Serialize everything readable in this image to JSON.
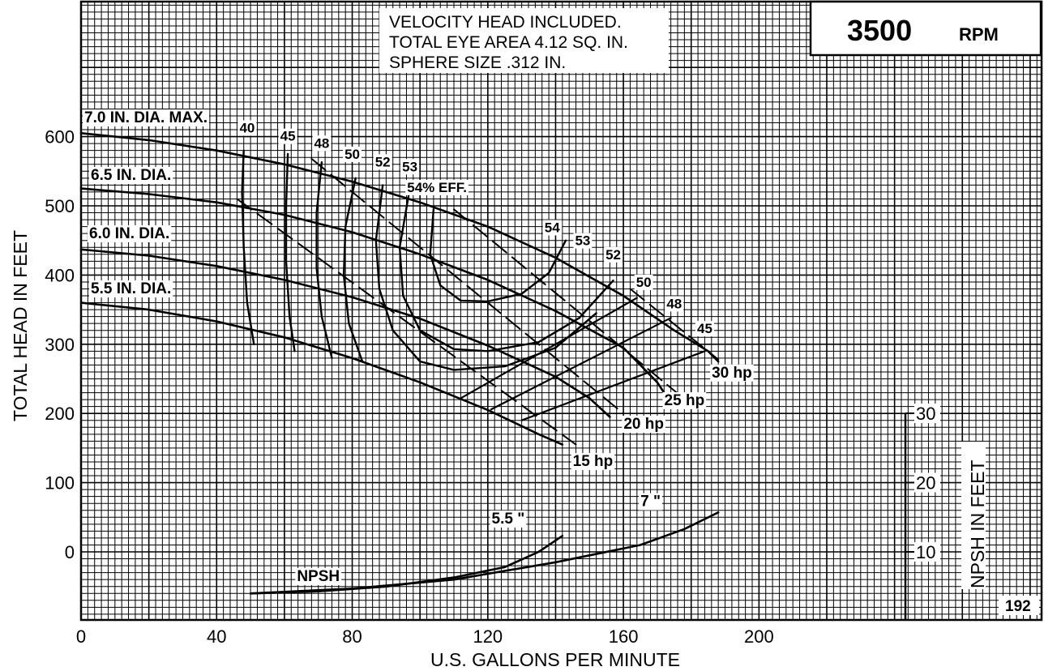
{
  "chart_data": {
    "type": "line",
    "title": "",
    "xlabel": "U.S. GALLONS PER MINUTE",
    "ylabel": "TOTAL HEAD IN FEET",
    "y2label": "NPSH IN FEET",
    "xlim": [
      0,
      240
    ],
    "ylim": [
      -95,
      800
    ],
    "y2lim": [
      0,
      30
    ],
    "grid": true,
    "x_ticks": [
      0,
      40,
      80,
      120,
      160,
      200
    ],
    "y_ticks": [
      0,
      100,
      200,
      300,
      400,
      500,
      600
    ],
    "y2_ticks": [
      10,
      20,
      30
    ],
    "rpm_value": "3500",
    "rpm_unit": "RPM",
    "notes": [
      "VELOCITY HEAD INCLUDED.",
      "TOTAL EYE AREA 4.12 SQ. IN.",
      "SPHERE SIZE .312 IN."
    ],
    "figure_number": "192",
    "npsh_label": "NPSH",
    "series": [
      {
        "name": "7.0 IN. DIA. MAX.",
        "x": [
          0,
          20,
          40,
          60,
          80,
          100,
          120,
          140,
          160,
          175,
          185,
          188
        ],
        "y": [
          605,
          595,
          580,
          560,
          535,
          505,
          470,
          425,
          370,
          320,
          290,
          275
        ]
      },
      {
        "name": "6.5 IN. DIA.",
        "x": [
          0,
          20,
          40,
          60,
          80,
          100,
          120,
          140,
          160,
          170,
          172
        ],
        "y": [
          525,
          517,
          505,
          487,
          462,
          430,
          393,
          348,
          295,
          245,
          230
        ]
      },
      {
        "name": "6.0 IN. DIA.",
        "x": [
          0,
          20,
          40,
          60,
          80,
          100,
          120,
          140,
          150,
          156
        ],
        "y": [
          437,
          428,
          413,
          393,
          368,
          337,
          298,
          253,
          222,
          195
        ]
      },
      {
        "name": "5.5 IN. DIA.",
        "x": [
          0,
          20,
          40,
          60,
          80,
          100,
          120,
          135,
          142
        ],
        "y": [
          360,
          350,
          333,
          310,
          280,
          245,
          205,
          170,
          155
        ]
      }
    ],
    "efficiency_curves": [
      {
        "label": "40",
        "x": [
          48,
          47.5,
          48,
          49,
          51
        ],
        "y": [
          580,
          520,
          440,
          360,
          300
        ]
      },
      {
        "label": "45",
        "x": [
          61,
          60.5,
          60.5,
          61.5,
          63
        ],
        "y": [
          575,
          500,
          420,
          340,
          290
        ]
      },
      {
        "label": "48",
        "x": [
          71,
          69.5,
          69.5,
          71,
          74
        ],
        "y": [
          563,
          490,
          410,
          340,
          280
        ]
      },
      {
        "label": "50",
        "x": [
          81,
          78,
          77.5,
          79,
          83
        ],
        "y": [
          540,
          470,
          400,
          330,
          275
        ]
      },
      {
        "label": "52",
        "x": [
          89,
          87,
          88,
          92,
          100,
          110,
          125,
          140,
          152
        ],
        "y": [
          530,
          450,
          380,
          320,
          275,
          263,
          268,
          295,
          345
        ]
      },
      {
        "label": "53",
        "x": [
          97,
          94,
          95,
          100,
          110,
          120,
          135,
          147,
          157
        ],
        "y": [
          525,
          440,
          370,
          320,
          293,
          290,
          303,
          338,
          392
        ]
      },
      {
        "label": "54",
        "x": [
          104,
          103,
          106,
          112,
          120,
          130,
          138,
          143
        ],
        "y": [
          495,
          430,
          385,
          363,
          362,
          373,
          403,
          450
        ]
      }
    ],
    "efficiency_labels": [
      {
        "text": "40",
        "x": 49,
        "y": 606
      },
      {
        "text": "45",
        "x": 61,
        "y": 594
      },
      {
        "text": "48",
        "x": 71,
        "y": 584
      },
      {
        "text": "50",
        "x": 80,
        "y": 568
      },
      {
        "text": "52",
        "x": 89,
        "y": 557
      },
      {
        "text": "53",
        "x": 97,
        "y": 550
      },
      {
        "text": "54% EFF.",
        "x": 105,
        "y": 520
      },
      {
        "text": "54",
        "x": 139,
        "y": 462
      },
      {
        "text": "53",
        "x": 148,
        "y": 443
      },
      {
        "text": "52",
        "x": 157,
        "y": 423
      },
      {
        "text": "50",
        "x": 166,
        "y": 383
      },
      {
        "text": "48",
        "x": 175,
        "y": 352
      },
      {
        "text": "45",
        "x": 184,
        "y": 316
      }
    ],
    "efficiency_right_lines": [
      {
        "label": "45",
        "x": [
          130,
          184
        ],
        "y": [
          190,
          290
        ]
      },
      {
        "label": "48",
        "x": [
          121,
          174
        ],
        "y": [
          206,
          338
        ]
      },
      {
        "label": "50",
        "x": [
          112,
          164
        ],
        "y": [
          222,
          367
        ]
      }
    ],
    "horsepower_lines": [
      {
        "label": "15 hp",
        "x": [
          46,
          146
        ],
        "y": [
          510,
          155
        ]
      },
      {
        "label": "20 hp",
        "x": [
          68,
          160
        ],
        "y": [
          568,
          200
        ]
      },
      {
        "label": "25 hp",
        "x": [
          110,
          177
        ],
        "y": [
          495,
          225
        ]
      },
      {
        "label": "30 hp",
        "x": [
          162,
          188
        ],
        "y": [
          380,
          278
        ]
      }
    ],
    "hp_labels": [
      {
        "text": "15 hp",
        "x": 151,
        "y": 124
      },
      {
        "text": "20 hp",
        "x": 166,
        "y": 178
      },
      {
        "text": "25 hp",
        "x": 178,
        "y": 212
      },
      {
        "text": "30 hp",
        "x": 192,
        "y": 252
      }
    ],
    "npsh_curves": [
      {
        "label": "5.5 \"",
        "x": [
          50,
          70,
          90,
          110,
          125,
          135,
          142
        ],
        "y2": [
          4,
          4.3,
          5,
          6.3,
          7.8,
          10,
          12.3
        ]
      },
      {
        "label": "7 \"",
        "x": [
          50,
          80,
          110,
          140,
          165,
          178,
          188
        ],
        "y2": [
          4,
          4.7,
          6,
          8.5,
          11,
          13.3,
          15.7
        ]
      }
    ],
    "npsh_labels": [
      {
        "text": "5.5 \"",
        "x": 126,
        "y2": 14.1
      },
      {
        "text": "7 \"",
        "x": 168,
        "y2": 16.6
      },
      {
        "text": "NPSH",
        "x": 70,
        "y2": 5.8
      }
    ]
  }
}
